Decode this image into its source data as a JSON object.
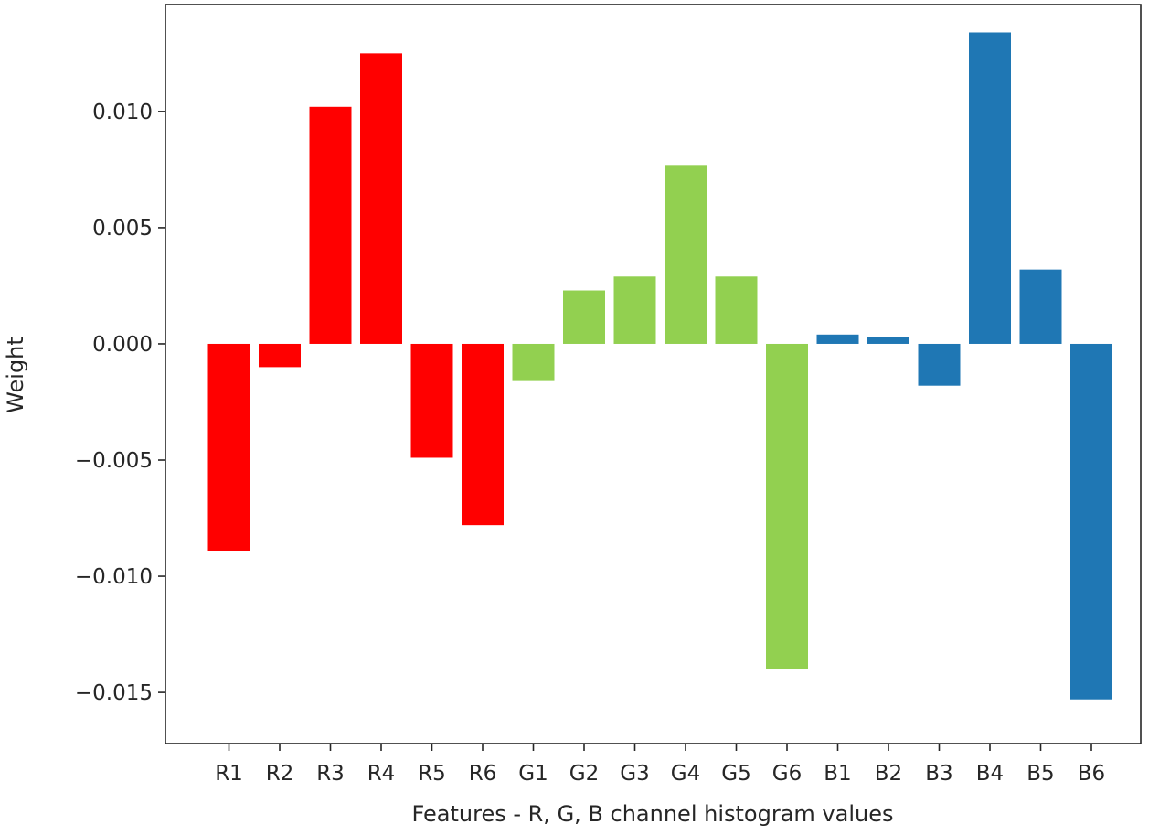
{
  "chart_data": {
    "type": "bar",
    "title": "",
    "xlabel": "Features - R, G, B channel histogram values",
    "ylabel": "Weight",
    "ylim": [
      -0.0172,
      0.0146
    ],
    "yticks": [
      0.01,
      0.005,
      0.0,
      -0.005,
      -0.01,
      -0.015
    ],
    "ytick_labels": [
      "0.010",
      "0.005",
      "0.000",
      "−0.005",
      "−0.010",
      "−0.015"
    ],
    "grid": false,
    "legend": "none",
    "categories": [
      "R1",
      "R2",
      "R3",
      "R4",
      "R5",
      "R6",
      "G1",
      "G2",
      "G3",
      "G4",
      "G5",
      "G6",
      "B1",
      "B2",
      "B3",
      "B4",
      "B5",
      "B6"
    ],
    "values": [
      -0.0089,
      -0.001,
      0.0102,
      0.0125,
      -0.0049,
      -0.0078,
      -0.0016,
      0.0023,
      0.0029,
      0.0077,
      0.0029,
      -0.014,
      0.0004,
      0.0003,
      -0.0018,
      0.0134,
      0.0032,
      -0.0153
    ],
    "bar_colors": [
      "#ff0000",
      "#ff0000",
      "#ff0000",
      "#ff0000",
      "#ff0000",
      "#ff0000",
      "#92d050",
      "#92d050",
      "#92d050",
      "#92d050",
      "#92d050",
      "#92d050",
      "#1f77b4",
      "#1f77b4",
      "#1f77b4",
      "#1f77b4",
      "#1f77b4",
      "#1f77b4"
    ]
  }
}
